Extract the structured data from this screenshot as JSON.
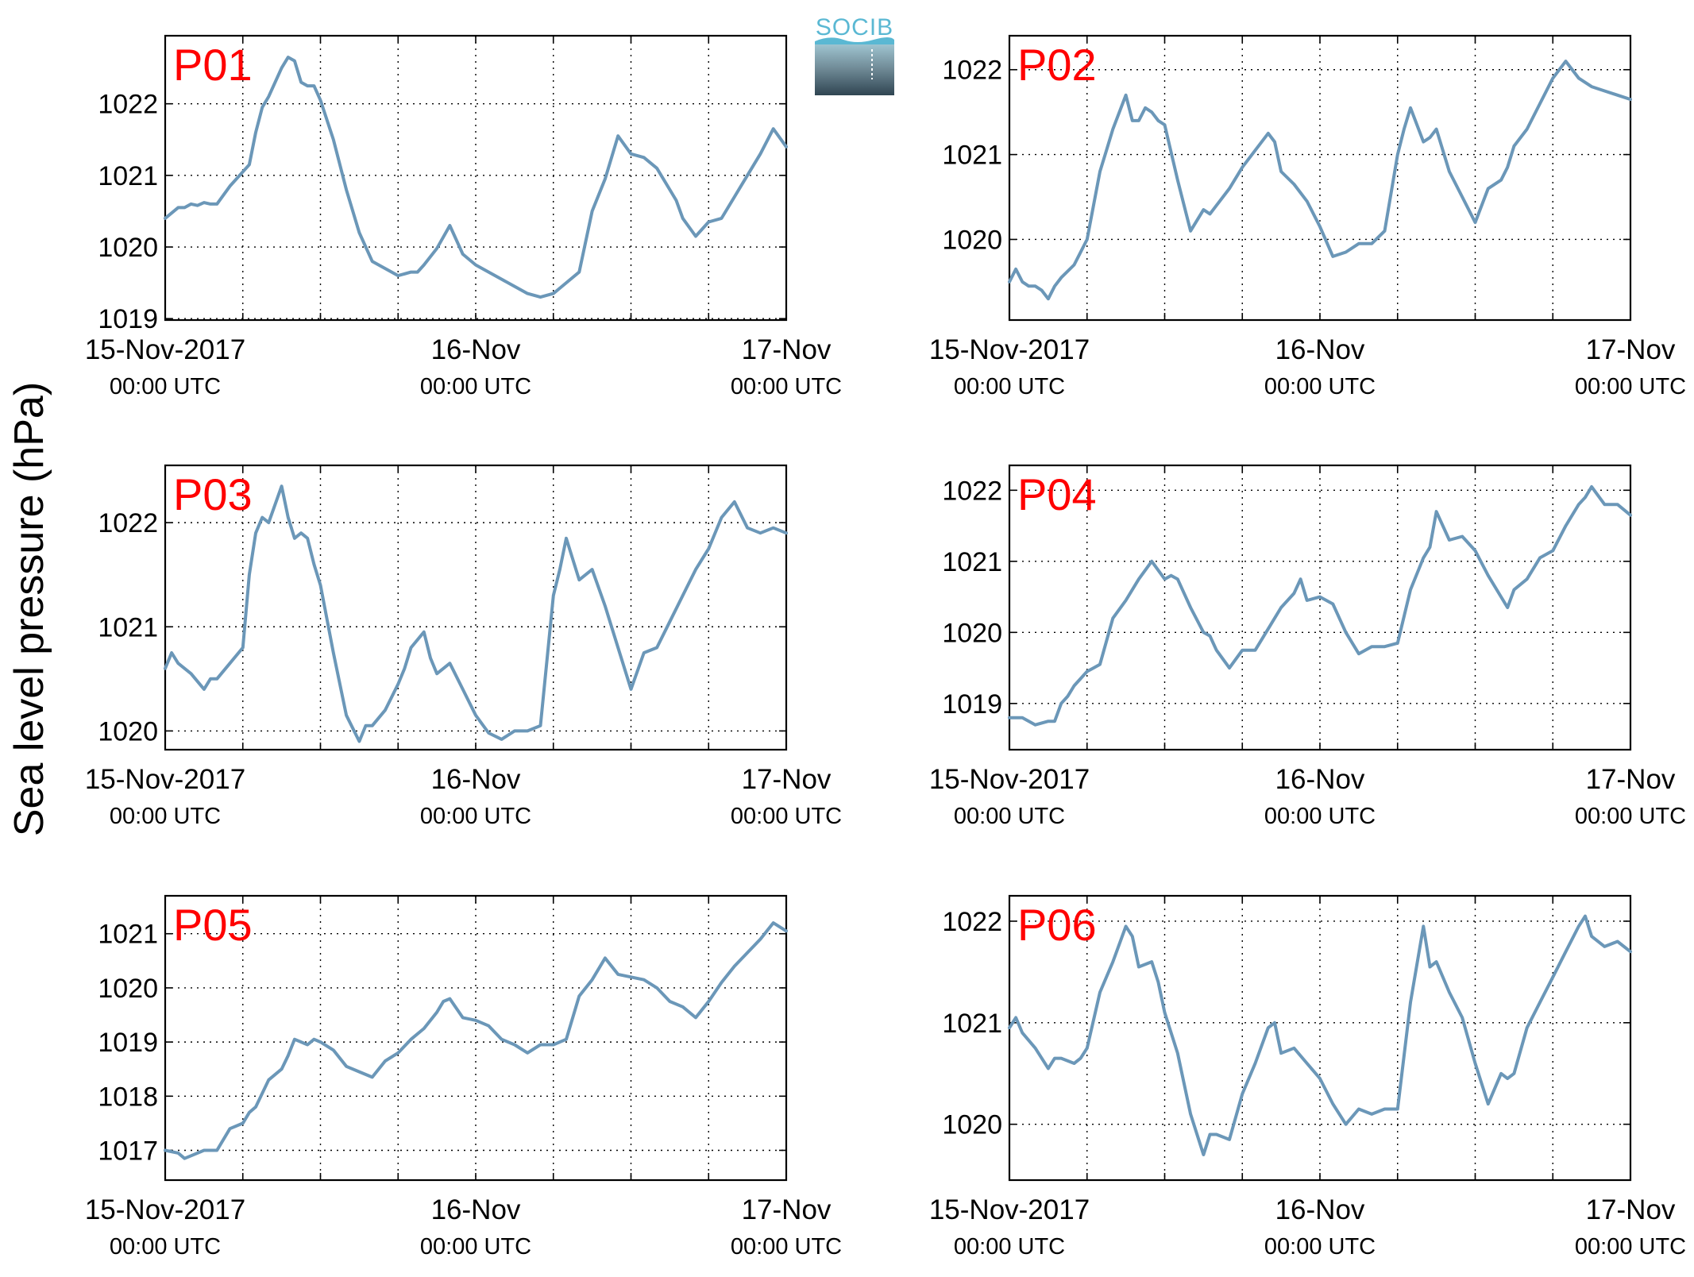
{
  "ylabel": "Sea level pressure (hPa)",
  "logo": {
    "text": "SOCIB",
    "accent": "#5ab8d3",
    "dark": "#2f4552"
  },
  "series_color": "#6b97b8",
  "label_color": "#ff0000",
  "x_ticks": [
    {
      "main": "15-Nov-2017",
      "sub": "00:00 UTC"
    },
    {
      "main": "16-Nov",
      "sub": "00:00 UTC"
    },
    {
      "main": "17-Nov",
      "sub": "00:00 UTC"
    }
  ],
  "chart_data": [
    {
      "type": "line",
      "title": "P01",
      "xlabel": "",
      "ylabel": "Sea level pressure (hPa)",
      "xlim": [
        0,
        48
      ],
      "ylim": [
        1018.98,
        1022.95
      ],
      "yticks": [
        1019,
        1020,
        1021,
        1022
      ],
      "grid": true,
      "series": [
        {
          "x": [
            0,
            1,
            1.5,
            2,
            2.5,
            3,
            3.5,
            4,
            5,
            6,
            6.5,
            7,
            7.5,
            8,
            9,
            9.5,
            10,
            10.5,
            11,
            11.5,
            12,
            13,
            14,
            15,
            16,
            17,
            18,
            19,
            19.5,
            20,
            21,
            22,
            23,
            24,
            25,
            26,
            27,
            28,
            29,
            30,
            31,
            32,
            33,
            34,
            35,
            36,
            37,
            38,
            39,
            39.5,
            40,
            41,
            42,
            43,
            44,
            45,
            46,
            47,
            48
          ],
          "y": [
            1020.4,
            1020.55,
            1020.55,
            1020.6,
            1020.58,
            1020.62,
            1020.6,
            1020.6,
            1020.85,
            1021.05,
            1021.15,
            1021.6,
            1021.95,
            1022.1,
            1022.5,
            1022.65,
            1022.6,
            1022.3,
            1022.25,
            1022.25,
            1022.05,
            1021.5,
            1020.8,
            1020.2,
            1019.8,
            1019.7,
            1019.6,
            1019.65,
            1019.65,
            1019.75,
            1019.98,
            1020.3,
            1019.9,
            1019.75,
            1019.65,
            1019.55,
            1019.45,
            1019.35,
            1019.3,
            1019.35,
            1019.5,
            1019.65,
            1020.5,
            1020.95,
            1021.55,
            1021.3,
            1021.25,
            1021.1,
            1020.8,
            1020.65,
            1020.4,
            1020.15,
            1020.35,
            1020.4,
            1020.7,
            1021,
            1021.3,
            1021.65,
            1021.4
          ]
        }
      ]
    },
    {
      "type": "line",
      "title": "P02",
      "xlabel": "",
      "ylabel": "Sea level pressure (hPa)",
      "xlim": [
        0,
        48
      ],
      "ylim": [
        1019.05,
        1022.4
      ],
      "yticks": [
        1020,
        1021,
        1022
      ],
      "grid": true,
      "series": [
        {
          "x": [
            0,
            0.5,
            1,
            1.5,
            2,
            2.5,
            3,
            3.5,
            4,
            5,
            6,
            6.5,
            7,
            7.5,
            8,
            9,
            9.5,
            10,
            10.5,
            11,
            11.5,
            12,
            13,
            14,
            15,
            15.5,
            16,
            17,
            18,
            19,
            20,
            20.5,
            21,
            22,
            23,
            24,
            25,
            26,
            27,
            28,
            29,
            30,
            30.5,
            31,
            32,
            32.5,
            33,
            34,
            35,
            36,
            37,
            38,
            38.5,
            39,
            40,
            41,
            42,
            43,
            44,
            45,
            46,
            47,
            48
          ],
          "y": [
            1019.5,
            1019.65,
            1019.5,
            1019.45,
            1019.45,
            1019.4,
            1019.3,
            1019.45,
            1019.55,
            1019.7,
            1020,
            1020.4,
            1020.8,
            1021.05,
            1021.3,
            1021.7,
            1021.4,
            1021.4,
            1021.55,
            1021.5,
            1021.4,
            1021.35,
            1020.7,
            1020.1,
            1020.35,
            1020.3,
            1020.4,
            1020.6,
            1020.85,
            1021.05,
            1021.25,
            1021.15,
            1020.8,
            1020.65,
            1020.45,
            1020.15,
            1019.8,
            1019.85,
            1019.95,
            1019.95,
            1020.1,
            1021,
            1021.3,
            1021.55,
            1021.15,
            1021.2,
            1021.3,
            1020.8,
            1020.5,
            1020.2,
            1020.6,
            1020.7,
            1020.85,
            1021.1,
            1021.3,
            1021.6,
            1021.9,
            1022.1,
            1021.9,
            1021.8,
            1021.75,
            1021.7,
            1021.65
          ]
        }
      ]
    },
    {
      "type": "line",
      "title": "P03",
      "xlabel": "",
      "ylabel": "Sea level pressure (hPa)",
      "xlim": [
        0,
        48
      ],
      "ylim": [
        1019.82,
        1022.55
      ],
      "yticks": [
        1020,
        1021,
        1022
      ],
      "grid": true,
      "series": [
        {
          "x": [
            0,
            0.5,
            1,
            2,
            3,
            3.5,
            4,
            5,
            6,
            6.5,
            7,
            7.5,
            8,
            9,
            9.5,
            10,
            10.5,
            11,
            11.5,
            12,
            13,
            14,
            15,
            15.5,
            16,
            17,
            18,
            18.5,
            19,
            20,
            20.5,
            21,
            22,
            23,
            24,
            25,
            26,
            27,
            28,
            29,
            30,
            30.5,
            31,
            32,
            33,
            34,
            35,
            36,
            37,
            38,
            39,
            40,
            41,
            42,
            43,
            44,
            45,
            46,
            47,
            48
          ],
          "y": [
            1020.6,
            1020.75,
            1020.65,
            1020.55,
            1020.4,
            1020.5,
            1020.5,
            1020.65,
            1020.8,
            1021.5,
            1021.9,
            1022.05,
            1022,
            1022.35,
            1022.05,
            1021.85,
            1021.9,
            1021.85,
            1021.6,
            1021.4,
            1020.75,
            1020.15,
            1019.9,
            1020.05,
            1020.05,
            1020.2,
            1020.45,
            1020.6,
            1020.8,
            1020.95,
            1020.7,
            1020.55,
            1020.65,
            1020.4,
            1020.15,
            1019.98,
            1019.92,
            1020,
            1020,
            1020.05,
            1021.3,
            1021.55,
            1021.85,
            1021.45,
            1021.55,
            1021.2,
            1020.8,
            1020.4,
            1020.75,
            1020.8,
            1021.05,
            1021.3,
            1021.55,
            1021.75,
            1022.05,
            1022.2,
            1021.95,
            1021.9,
            1021.95,
            1021.9
          ]
        }
      ]
    },
    {
      "type": "line",
      "title": "P04",
      "xlabel": "",
      "ylabel": "Sea level pressure (hPa)",
      "xlim": [
        0,
        48
      ],
      "ylim": [
        1018.35,
        1022.35
      ],
      "yticks": [
        1019,
        1020,
        1021,
        1022
      ],
      "grid": true,
      "series": [
        {
          "x": [
            0,
            1,
            2,
            3,
            3.5,
            4,
            4.5,
            5,
            6,
            6.5,
            7,
            8,
            9,
            10,
            11,
            12,
            12.5,
            13,
            14,
            15,
            15.5,
            16,
            17,
            18,
            19,
            20,
            21,
            22,
            22.5,
            23,
            24,
            25,
            26,
            27,
            28,
            29,
            30,
            31,
            32,
            32.5,
            33,
            34,
            35,
            36,
            37,
            38,
            38.5,
            39,
            40,
            41,
            42,
            43,
            44,
            44.5,
            45,
            46,
            47,
            48
          ],
          "y": [
            1018.8,
            1018.8,
            1018.7,
            1018.75,
            1018.75,
            1019,
            1019.1,
            1019.25,
            1019.45,
            1019.5,
            1019.55,
            1020.2,
            1020.45,
            1020.75,
            1021,
            1020.75,
            1020.8,
            1020.75,
            1020.35,
            1020,
            1019.95,
            1019.75,
            1019.5,
            1019.75,
            1019.75,
            1020.05,
            1020.35,
            1020.55,
            1020.75,
            1020.45,
            1020.5,
            1020.4,
            1020,
            1019.7,
            1019.8,
            1019.8,
            1019.85,
            1020.6,
            1021.05,
            1021.2,
            1021.7,
            1021.3,
            1021.35,
            1021.15,
            1020.8,
            1020.5,
            1020.35,
            1020.6,
            1020.75,
            1021.05,
            1021.15,
            1021.5,
            1021.8,
            1021.9,
            1022.05,
            1021.8,
            1021.8,
            1021.65
          ]
        }
      ]
    },
    {
      "type": "line",
      "title": "P05",
      "xlabel": "",
      "ylabel": "Sea level pressure (hPa)",
      "xlim": [
        0,
        48
      ],
      "ylim": [
        1016.45,
        1021.7
      ],
      "yticks": [
        1017,
        1018,
        1019,
        1020,
        1021
      ],
      "grid": true,
      "series": [
        {
          "x": [
            0,
            1,
            1.5,
            2,
            3,
            4,
            5,
            6,
            6.5,
            7,
            8,
            9,
            9.5,
            10,
            11,
            11.5,
            12,
            13,
            14,
            15,
            16,
            17,
            18,
            19,
            20,
            21,
            21.5,
            22,
            23,
            24,
            25,
            26,
            27,
            28,
            29,
            30,
            31,
            32,
            33,
            34,
            35,
            36,
            37,
            38,
            39,
            40,
            41,
            42,
            43,
            44,
            45,
            46,
            47,
            48
          ],
          "y": [
            1017,
            1016.95,
            1016.85,
            1016.9,
            1017,
            1017,
            1017.4,
            1017.5,
            1017.7,
            1017.8,
            1018.3,
            1018.5,
            1018.75,
            1019.05,
            1018.95,
            1019.05,
            1019,
            1018.85,
            1018.55,
            1018.45,
            1018.35,
            1018.65,
            1018.8,
            1019.05,
            1019.25,
            1019.55,
            1019.75,
            1019.8,
            1019.45,
            1019.4,
            1019.3,
            1019.05,
            1018.95,
            1018.8,
            1018.95,
            1018.95,
            1019.05,
            1019.85,
            1020.15,
            1020.55,
            1020.25,
            1020.2,
            1020.15,
            1020,
            1019.75,
            1019.65,
            1019.45,
            1019.75,
            1020.1,
            1020.4,
            1020.65,
            1020.9,
            1021.2,
            1021.05
          ]
        }
      ]
    },
    {
      "type": "line",
      "title": "P06",
      "xlabel": "",
      "ylabel": "Sea level pressure (hPa)",
      "xlim": [
        0,
        48
      ],
      "ylim": [
        1019.45,
        1022.25
      ],
      "yticks": [
        1020,
        1021,
        1022
      ],
      "grid": true,
      "series": [
        {
          "x": [
            0,
            0.5,
            1,
            2,
            3,
            3.5,
            4,
            5,
            5.5,
            6,
            7,
            8,
            9,
            9.5,
            10,
            11,
            11.5,
            12,
            13,
            14,
            15,
            15.5,
            16,
            17,
            18,
            19,
            20,
            20.5,
            21,
            22,
            23,
            24,
            25,
            26,
            27,
            28,
            29,
            30,
            31,
            32,
            32.5,
            33,
            34,
            35,
            36,
            37,
            38,
            38.5,
            39,
            40,
            41,
            42,
            43,
            44,
            44.5,
            45,
            46,
            47,
            48
          ],
          "y": [
            1020.95,
            1021.05,
            1020.9,
            1020.75,
            1020.55,
            1020.65,
            1020.65,
            1020.6,
            1020.65,
            1020.75,
            1021.3,
            1021.6,
            1021.95,
            1021.85,
            1021.55,
            1021.6,
            1021.4,
            1021.1,
            1020.7,
            1020.1,
            1019.7,
            1019.9,
            1019.9,
            1019.85,
            1020.3,
            1020.6,
            1020.95,
            1021,
            1020.7,
            1020.75,
            1020.6,
            1020.45,
            1020.2,
            1020,
            1020.15,
            1020.1,
            1020.15,
            1020.15,
            1021.2,
            1021.95,
            1021.55,
            1021.6,
            1021.3,
            1021.05,
            1020.6,
            1020.2,
            1020.5,
            1020.45,
            1020.5,
            1020.95,
            1021.2,
            1021.45,
            1021.7,
            1021.95,
            1022.05,
            1021.85,
            1021.75,
            1021.8,
            1021.7
          ]
        }
      ]
    }
  ]
}
